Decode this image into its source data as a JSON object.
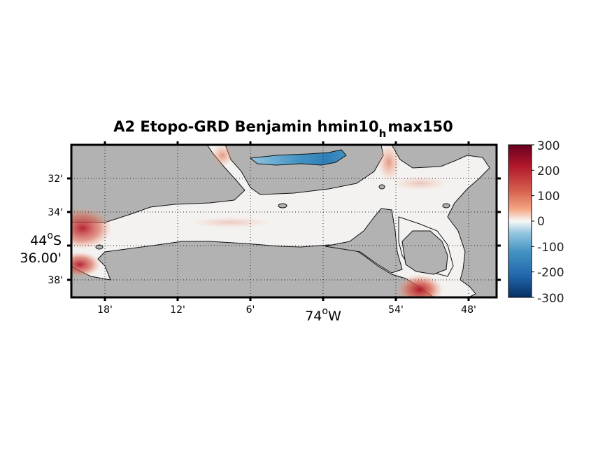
{
  "map": {
    "title_main": "A2 Etopo-GRD Benjamin hmin10",
    "title_sub": "h",
    "title_tail": "max150",
    "x_ticks": [
      "18'",
      "12'",
      "6'",
      "54'",
      "48'"
    ],
    "x_center_label": "74",
    "x_center_deg": "o",
    "x_center_hem": "W",
    "y_ticks": [
      "32'",
      "34'",
      "38'"
    ],
    "y_center_label_deg": "44",
    "y_center_label_o": "o",
    "y_center_label_hem": "S",
    "y_center_label_min": "36.00'",
    "land_color": "#b2b2b2",
    "water_color": "#f4f2f1"
  },
  "colorbar": {
    "ticks": [
      "300",
      "200",
      "100",
      "0",
      "-100",
      "-200",
      "-300"
    ],
    "range": [
      -300,
      300
    ],
    "colors": [
      "#67001f",
      "#b2182b",
      "#d6604d",
      "#f4a582",
      "#f7f7f7",
      "#92c5de",
      "#4393c3",
      "#2166ac",
      "#053061"
    ]
  }
}
